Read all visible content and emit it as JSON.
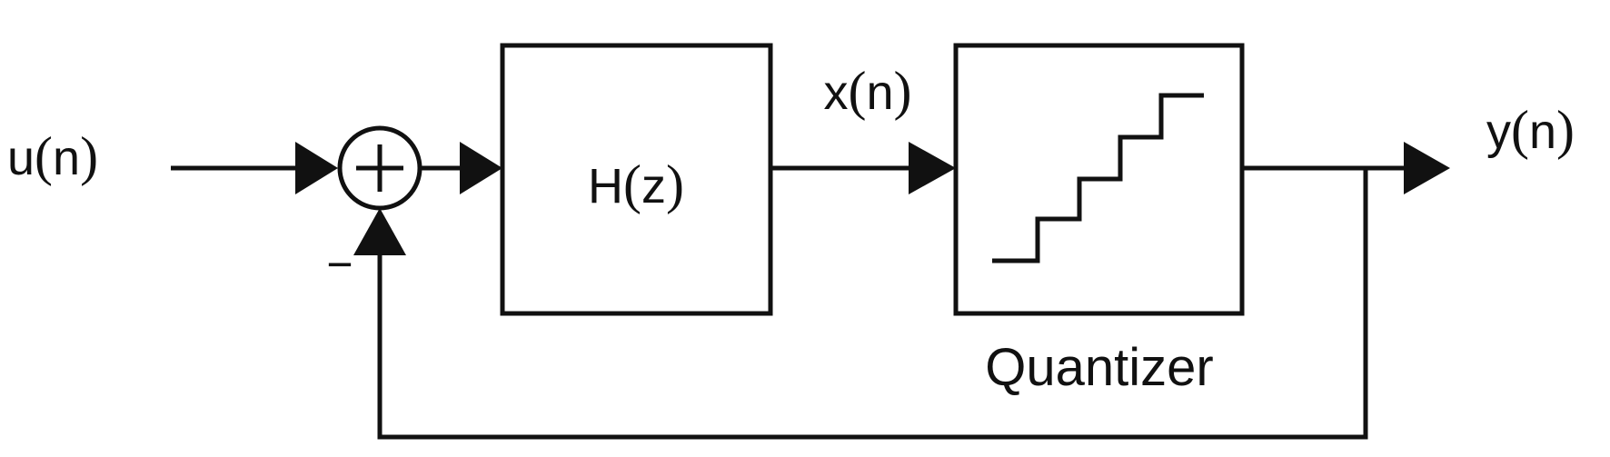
{
  "signals": {
    "input": {
      "name": "u",
      "arg": "n"
    },
    "intermediate": {
      "name": "x",
      "arg": "n"
    },
    "output": {
      "name": "y",
      "arg": "n"
    }
  },
  "blocks": {
    "filter": {
      "name": "H",
      "arg": "z"
    },
    "quantizer": {
      "caption": "Quantizer"
    }
  },
  "summing_junction": {
    "plus_sign": "+",
    "minus_sign": "−"
  }
}
